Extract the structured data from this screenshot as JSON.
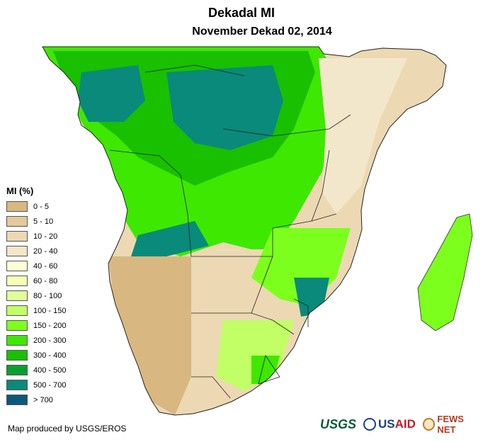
{
  "title": "Dekadal MI",
  "subtitle": "November Dekad 02, 2014",
  "legend": {
    "title": "MI (%)",
    "items": [
      {
        "label": "0 - 5",
        "color": "#d8b880"
      },
      {
        "label": "5 - 10",
        "color": "#e3c99b"
      },
      {
        "label": "10 - 20",
        "color": "#ecd9b3"
      },
      {
        "label": "20 - 40",
        "color": "#f3e7cb"
      },
      {
        "label": "40 - 60",
        "color": "#ffffd6"
      },
      {
        "label": "60 - 80",
        "color": "#f6ffb3"
      },
      {
        "label": "80 - 100",
        "color": "#e1ff99"
      },
      {
        "label": "100 - 150",
        "color": "#c2ff66"
      },
      {
        "label": "150 - 200",
        "color": "#7dff1e"
      },
      {
        "label": "200 - 300",
        "color": "#3ee800"
      },
      {
        "label": "300 - 400",
        "color": "#18c000"
      },
      {
        "label": "400 - 500",
        "color": "#0aa030"
      },
      {
        "label": "500 - 700",
        "color": "#0a8a7a"
      },
      {
        "label": "> 700",
        "color": "#0a5a7a"
      }
    ]
  },
  "credit": "Map produced by USGS/EROS",
  "logos": {
    "usgs": "USGS",
    "usaid_us": "US",
    "usaid_aid": "AID",
    "fews": "FEWS NET"
  }
}
